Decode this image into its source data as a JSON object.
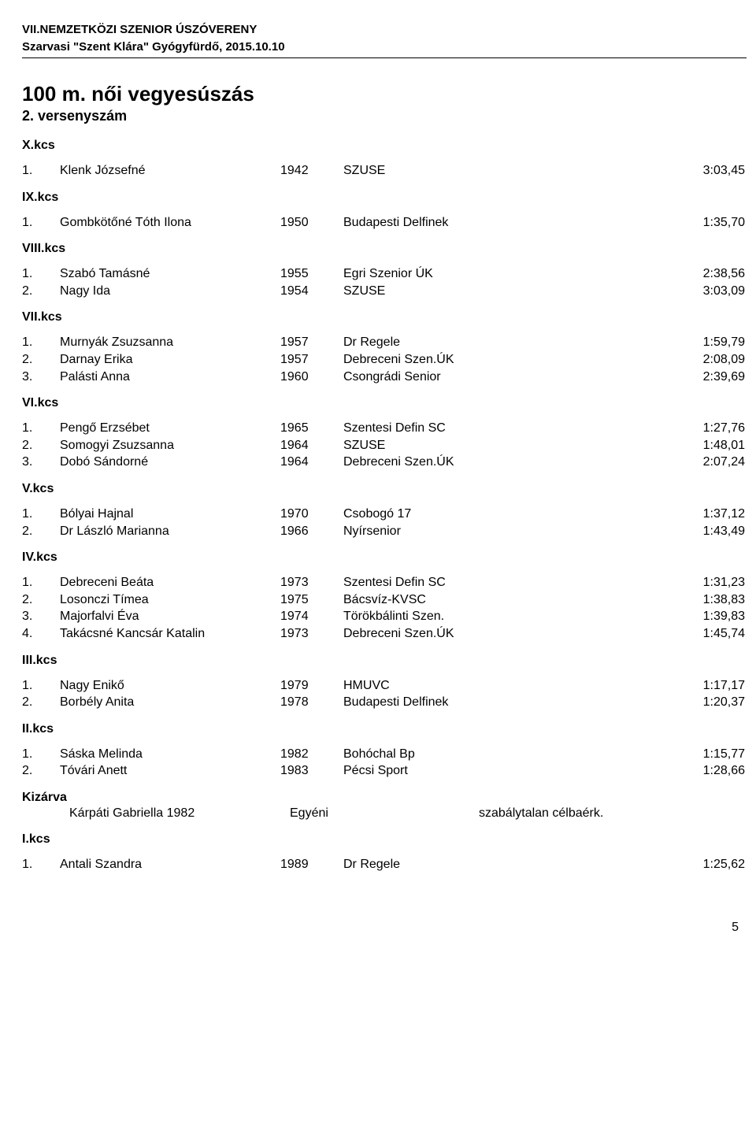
{
  "header": {
    "line1": "VII.NEMZETKÖZI SZENIOR ÚSZÓVERENY",
    "line2": "Szarvasi \"Szent Klára\" Gyógyfürdő, 2015.10.10"
  },
  "event": {
    "title": "100 m. női vegyesúszás",
    "subtitle": "2. versenyszám"
  },
  "groups": [
    {
      "label": "X.kcs",
      "rows": [
        {
          "rank": "1.",
          "name": "Klenk Józsefné",
          "year": "1942",
          "club": "SZUSE",
          "time": "3:03,45"
        }
      ]
    },
    {
      "label": "IX.kcs",
      "rows": [
        {
          "rank": "1.",
          "name": "Gombkötőné Tóth Ilona",
          "year": "1950",
          "club": "Budapesti Delfinek",
          "time": "1:35,70"
        }
      ]
    },
    {
      "label": "VIII.kcs",
      "rows": [
        {
          "rank": "1.",
          "name": "Szabó Tamásné",
          "year": "1955",
          "club": "Egri Szenior ÚK",
          "time": "2:38,56"
        },
        {
          "rank": "2.",
          "name": "Nagy Ida",
          "year": "1954",
          "club": "SZUSE",
          "time": "3:03,09"
        }
      ]
    },
    {
      "label": "VII.kcs",
      "rows": [
        {
          "rank": "1.",
          "name": "Murnyák Zsuzsanna",
          "year": "1957",
          "club": "Dr Regele",
          "time": "1:59,79"
        },
        {
          "rank": "2.",
          "name": "Darnay Erika",
          "year": "1957",
          "club": "Debreceni Szen.ÚK",
          "time": "2:08,09"
        },
        {
          "rank": "3.",
          "name": "Palásti Anna",
          "year": "1960",
          "club": "Csongrádi Senior",
          "time": "2:39,69"
        }
      ]
    },
    {
      "label": "VI.kcs",
      "rows": [
        {
          "rank": "1.",
          "name": "Pengő Erzsébet",
          "year": "1965",
          "club": "Szentesi Defin SC",
          "time": "1:27,76"
        },
        {
          "rank": "2.",
          "name": "Somogyi Zsuzsanna",
          "year": "1964",
          "club": "SZUSE",
          "time": "1:48,01"
        },
        {
          "rank": "3.",
          "name": "Dobó Sándorné",
          "year": "1964",
          "club": "Debreceni Szen.ÚK",
          "time": "2:07,24"
        }
      ]
    },
    {
      "label": "V.kcs",
      "rows": [
        {
          "rank": "1.",
          "name": "Bólyai Hajnal",
          "year": "1970",
          "club": "Csobogó 17",
          "time": "1:37,12"
        },
        {
          "rank": "2.",
          "name": "Dr László Marianna",
          "year": "1966",
          "club": "Nyírsenior",
          "time": "1:43,49"
        }
      ]
    },
    {
      "label": "IV.kcs",
      "rows": [
        {
          "rank": "1.",
          "name": "Debreceni Beáta",
          "year": "1973",
          "club": "Szentesi Defin SC",
          "time": "1:31,23"
        },
        {
          "rank": "2.",
          "name": "Losonczi Tímea",
          "year": "1975",
          "club": "Bácsvíz-KVSC",
          "time": "1:38,83"
        },
        {
          "rank": "3.",
          "name": "Majorfalvi Éva",
          "year": "1974",
          "club": "Törökbálinti Szen.",
          "time": "1:39,83"
        },
        {
          "rank": "4.",
          "name": "Takácsné Kancsár Katalin",
          "year": "1973",
          "club": "Debreceni Szen.ÚK",
          "time": "1:45,74"
        }
      ]
    },
    {
      "label": "III.kcs",
      "rows": [
        {
          "rank": "1.",
          "name": "Nagy Enikő",
          "year": "1979",
          "club": "HMUVC",
          "time": "1:17,17"
        },
        {
          "rank": "2.",
          "name": "Borbély Anita",
          "year": "1978",
          "club": "Budapesti Delfinek",
          "time": "1:20,37"
        }
      ]
    },
    {
      "label": "II.kcs",
      "rows": [
        {
          "rank": "1.",
          "name": "Sáska Melinda",
          "year": "1982",
          "club": "Bohóchal Bp",
          "time": "1:15,77"
        },
        {
          "rank": "2.",
          "name": "Tóvári Anett",
          "year": "1983",
          "club": "Pécsi Sport",
          "time": "1:28,66"
        }
      ]
    }
  ],
  "dq": {
    "label": "Kizárva",
    "name": "Kárpáti Gabriella 1982",
    "club": "Egyéni",
    "reason": "szabálytalan célbaérk."
  },
  "group_last": {
    "label": "I.kcs",
    "rows": [
      {
        "rank": "1.",
        "name": "Antali Szandra",
        "year": "1989",
        "club": "Dr Regele",
        "time": "1:25,62"
      }
    ]
  },
  "page_number": "5"
}
